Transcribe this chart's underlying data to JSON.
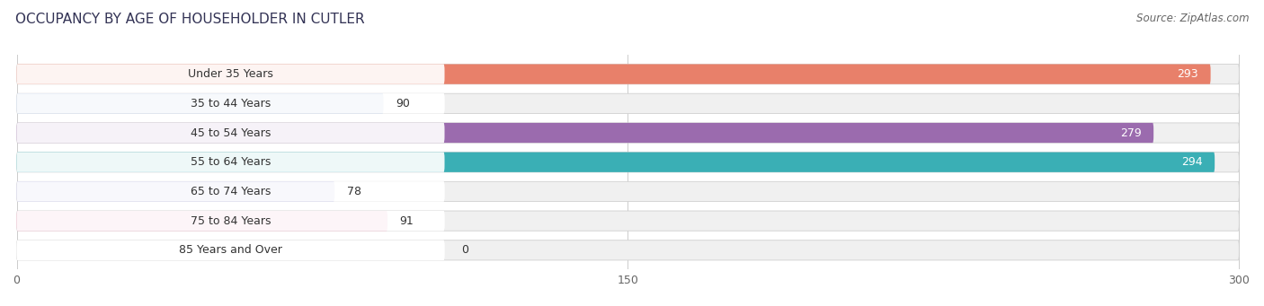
{
  "title": "OCCUPANCY BY AGE OF HOUSEHOLDER IN CUTLER",
  "source": "Source: ZipAtlas.com",
  "categories": [
    "Under 35 Years",
    "35 to 44 Years",
    "45 to 54 Years",
    "55 to 64 Years",
    "65 to 74 Years",
    "75 to 84 Years",
    "85 Years and Over"
  ],
  "values": [
    293,
    90,
    279,
    294,
    78,
    91,
    0
  ],
  "bar_colors": [
    "#E8806A",
    "#A8BEE0",
    "#9B6BAE",
    "#3AAFB5",
    "#B0AEDD",
    "#F090B0",
    "#F5D5A0"
  ],
  "xlim_data": [
    0,
    300
  ],
  "xticks": [
    0,
    150,
    300
  ],
  "bar_height": 0.68,
  "fig_bg": "#ffffff",
  "bar_bg_color": "#eeeeee",
  "title_fontsize": 11,
  "source_fontsize": 8.5,
  "tick_fontsize": 9,
  "category_fontsize": 9
}
